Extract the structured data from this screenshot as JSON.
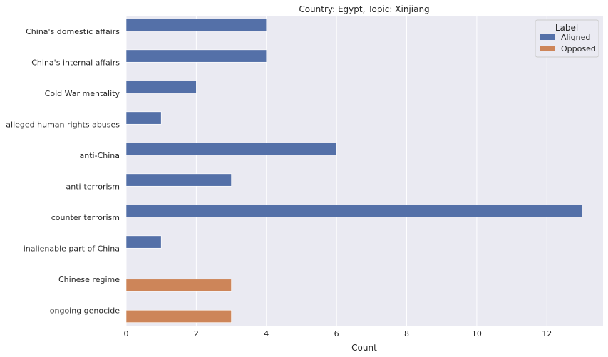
{
  "chart_data": {
    "type": "bar",
    "orientation": "horizontal",
    "title": "Country: Egypt, Topic: Xinjiang",
    "xlabel": "Count",
    "ylabel": "",
    "xlim": [
      0,
      13.6
    ],
    "xticks": [
      0,
      2,
      4,
      6,
      8,
      10,
      12
    ],
    "grid": true,
    "legend": {
      "title": "Label",
      "placement": "top-right",
      "entries": [
        {
          "name": "Aligned",
          "color": "#5470a8"
        },
        {
          "name": "Opposed",
          "color": "#cd8559"
        }
      ]
    },
    "categories": [
      "China's domestic affairs",
      "China's internal affairs",
      "Cold War mentality",
      "alleged human rights abuses",
      "anti-China",
      "anti-terrorism",
      "counter terrorism",
      "inalienable part of China",
      "Chinese regime",
      "ongoing genocide"
    ],
    "series": [
      {
        "name": "Aligned",
        "color": "#5470a8",
        "values": [
          4,
          4,
          2,
          1,
          6,
          3,
          13,
          1,
          null,
          null
        ]
      },
      {
        "name": "Opposed",
        "color": "#cd8559",
        "values": [
          null,
          null,
          null,
          null,
          null,
          null,
          null,
          null,
          3,
          3
        ]
      }
    ]
  },
  "colors": {
    "plot_background": "#eaeaf2",
    "grid": "#ffffff"
  }
}
